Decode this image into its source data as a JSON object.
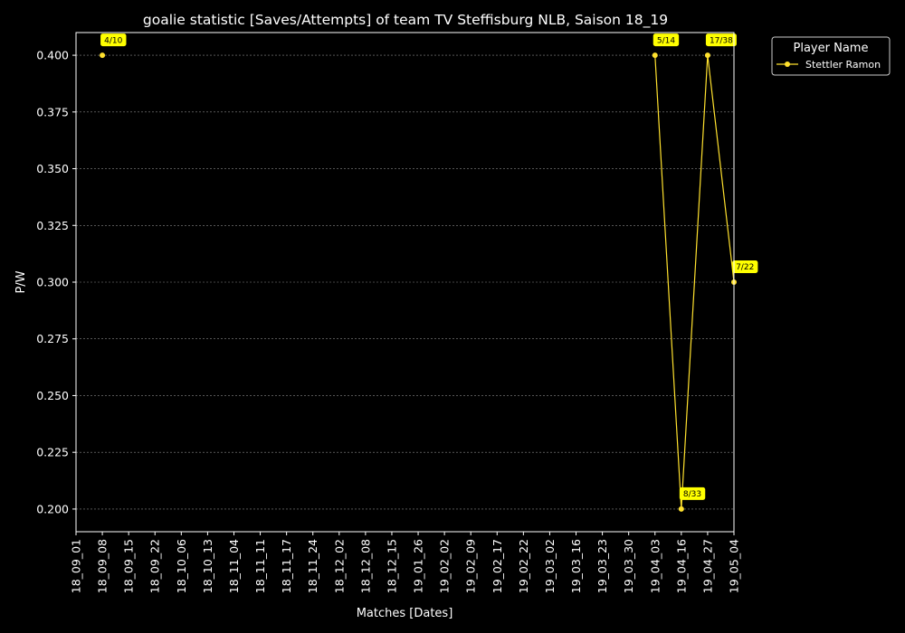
{
  "chart_data": {
    "type": "line",
    "title": "goalie statistic [Saves/Attempts] of team TV Steffisburg NLB, Saison 18_19",
    "xlabel": "Matches [Dates]",
    "ylabel": "P/W",
    "categories": [
      "18_09_01",
      "18_09_08",
      "18_09_15",
      "18_09_22",
      "18_10_06",
      "18_10_13",
      "18_11_04",
      "18_11_11",
      "18_11_17",
      "18_11_24",
      "18_12_02",
      "18_12_08",
      "18_12_15",
      "19_01_26",
      "19_02_02",
      "19_02_09",
      "19_02_17",
      "19_02_22",
      "19_03_02",
      "19_03_16",
      "19_03_23",
      "19_03_30",
      "19_04_03",
      "19_04_16",
      "19_04_27",
      "19_05_04"
    ],
    "ylim": [
      0.19,
      0.41
    ],
    "yticks": [
      "0.200",
      "0.225",
      "0.250",
      "0.275",
      "0.300",
      "0.325",
      "0.350",
      "0.375",
      "0.400"
    ],
    "grid": true,
    "background_color": "#000000",
    "text_color": "#ffffff",
    "grid_color": "#888888",
    "legend": {
      "title": "Player Name",
      "placement": "outside-top-right"
    },
    "series": [
      {
        "name": "Stettler Ramon",
        "color": "#ffe12e",
        "label_bg": "#ffff00",
        "segments": [
          [
            {
              "x": "18_09_08",
              "y": 0.4,
              "label": "4/10"
            }
          ],
          [
            {
              "x": "19_04_03",
              "y": 0.4,
              "label": "5/14"
            },
            {
              "x": "19_04_16",
              "y": 0.2,
              "label": "8/33"
            },
            {
              "x": "19_04_27",
              "y": 0.4,
              "label": "17/38"
            },
            {
              "x": "19_05_04",
              "y": 0.3,
              "label": "7/22"
            }
          ]
        ]
      }
    ]
  }
}
